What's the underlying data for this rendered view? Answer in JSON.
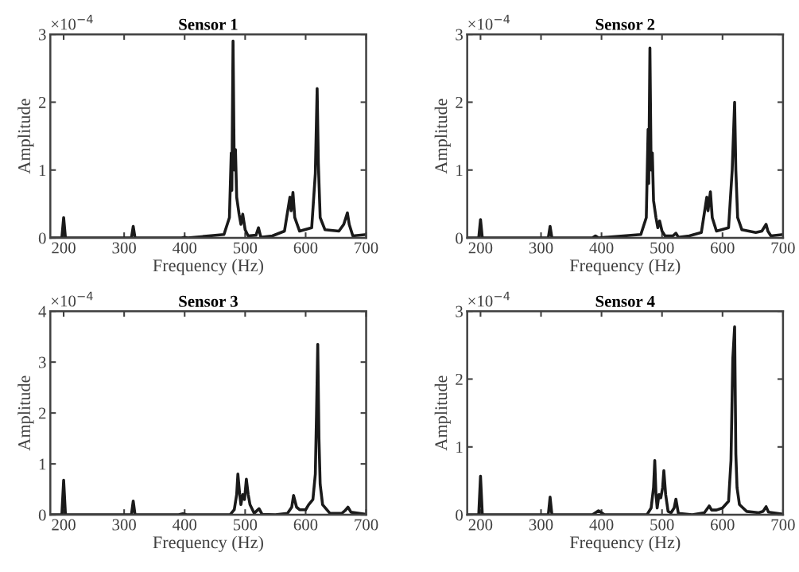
{
  "chart_data": [
    {
      "type": "line",
      "title": "Sensor 1",
      "xlabel": "Frequency (Hz)",
      "ylabel": "Amplitude",
      "annotations": [
        "×10$^{−4}$"
      ],
      "x": [
        178,
        197,
        200,
        203,
        312,
        315,
        318,
        395,
        400,
        405,
        465,
        474,
        477,
        478,
        480,
        482,
        484,
        486,
        490,
        493,
        496,
        500,
        505,
        518,
        522,
        526,
        545,
        565,
        574,
        576,
        579,
        582,
        590,
        610,
        616,
        619,
        621,
        624,
        632,
        655,
        663,
        669,
        672,
        678,
        700
      ],
      "series": [
        {
          "color": "#1a1a1a",
          "values": [
            0,
            0,
            0.3,
            0,
            0,
            0.17,
            0,
            0,
            0.01,
            0,
            0.05,
            0.3,
            1.25,
            0.7,
            2.9,
            1.0,
            1.3,
            0.6,
            0.35,
            0.2,
            0.35,
            0.12,
            0.03,
            0.04,
            0.15,
            0.01,
            0.03,
            0.1,
            0.6,
            0.4,
            0.67,
            0.3,
            0.1,
            0.15,
            0.95,
            2.2,
            1.1,
            0.3,
            0.12,
            0.1,
            0.2,
            0.37,
            0.2,
            0.03,
            0.05
          ]
        }
      ],
      "xlim": [
        178,
        700
      ],
      "xticks": [
        200,
        300,
        400,
        500,
        600,
        700
      ],
      "ylim": [
        0,
        3
      ],
      "yticks": [
        0,
        1,
        2,
        3
      ],
      "grid": false,
      "marker": "none",
      "line_style": "solid"
    },
    {
      "type": "line",
      "title": "Sensor 2",
      "xlabel": "Frequency (Hz)",
      "ylabel": "Amplitude",
      "annotations": [
        "×10$^{−4}$"
      ],
      "x": [
        178,
        197,
        200,
        203,
        312,
        315,
        318,
        385,
        390,
        395,
        465,
        474,
        477,
        478,
        480,
        482,
        484,
        486,
        490,
        493,
        496,
        500,
        505,
        518,
        523,
        527,
        545,
        565,
        574,
        576,
        580,
        583,
        590,
        610,
        616,
        620,
        622,
        625,
        632,
        655,
        665,
        672,
        675,
        680,
        700
      ],
      "series": [
        {
          "color": "#1a1a1a",
          "values": [
            0,
            0,
            0.27,
            0,
            0,
            0.17,
            0,
            0,
            0.03,
            0,
            0.05,
            0.3,
            1.6,
            0.8,
            2.8,
            1.0,
            1.25,
            0.55,
            0.3,
            0.15,
            0.25,
            0.1,
            0.03,
            0.03,
            0.07,
            0.01,
            0.03,
            0.08,
            0.6,
            0.4,
            0.68,
            0.3,
            0.1,
            0.15,
            1.0,
            2.0,
            1.0,
            0.3,
            0.12,
            0.08,
            0.1,
            0.2,
            0.1,
            0.03,
            0.05
          ]
        }
      ],
      "xlim": [
        178,
        700
      ],
      "xticks": [
        200,
        300,
        400,
        500,
        600,
        700
      ],
      "ylim": [
        0,
        3
      ],
      "yticks": [
        0,
        1,
        2,
        3
      ],
      "grid": false,
      "marker": "none",
      "line_style": "solid"
    },
    {
      "type": "line",
      "title": "Sensor 3",
      "xlabel": "Frequency (Hz)",
      "ylabel": "Amplitude",
      "annotations": [
        "×10$^{−4}$"
      ],
      "x": [
        178,
        197,
        200,
        203,
        312,
        315,
        318,
        390,
        397,
        403,
        475,
        482,
        486,
        488,
        491,
        493,
        496,
        499,
        502,
        505,
        508,
        515,
        523,
        528,
        550,
        570,
        577,
        580,
        585,
        590,
        600,
        605,
        612,
        616,
        618,
        620,
        622,
        624,
        628,
        640,
        660,
        665,
        670,
        675,
        700
      ],
      "series": [
        {
          "color": "#1a1a1a",
          "values": [
            0,
            0,
            0.68,
            0,
            0,
            0.27,
            0,
            0,
            0.02,
            0,
            0,
            0.1,
            0.4,
            0.8,
            0.4,
            0.2,
            0.4,
            0.3,
            0.7,
            0.4,
            0.2,
            0.03,
            0.12,
            0.01,
            0,
            0.03,
            0.15,
            0.38,
            0.15,
            0.1,
            0.1,
            0.2,
            0.3,
            0.8,
            2.0,
            3.35,
            1.5,
            0.6,
            0.2,
            0.03,
            0.03,
            0.08,
            0.15,
            0.05,
            0.01
          ]
        }
      ],
      "xlim": [
        178,
        700
      ],
      "xticks": [
        200,
        300,
        400,
        500,
        600,
        700
      ],
      "ylim": [
        0,
        4
      ],
      "yticks": [
        0,
        1,
        2,
        3,
        4
      ],
      "grid": false,
      "marker": "none",
      "line_style": "solid"
    },
    {
      "type": "line",
      "title": "Sensor 4",
      "xlabel": "Frequency (Hz)",
      "ylabel": "Amplitude",
      "annotations": [
        "×10$^{−4}$"
      ],
      "x": [
        178,
        197,
        200,
        203,
        312,
        315,
        318,
        385,
        395,
        405,
        475,
        482,
        486,
        488,
        490,
        492,
        495,
        498,
        501,
        503,
        506,
        510,
        515,
        520,
        523,
        527,
        550,
        570,
        578,
        582,
        590,
        600,
        610,
        614,
        617,
        620,
        622,
        624,
        628,
        640,
        660,
        667,
        672,
        676,
        700
      ],
      "series": [
        {
          "color": "#1a1a1a",
          "values": [
            0,
            0,
            0.57,
            0,
            0,
            0.26,
            0,
            0,
            0.06,
            0,
            0,
            0.1,
            0.4,
            0.8,
            0.3,
            0.1,
            0.3,
            0.25,
            0.4,
            0.65,
            0.3,
            0.05,
            0.03,
            0.1,
            0.23,
            0.02,
            0,
            0.03,
            0.13,
            0.07,
            0.07,
            0.1,
            0.2,
            0.8,
            2.3,
            2.77,
            0.9,
            0.4,
            0.15,
            0.05,
            0.03,
            0.05,
            0.12,
            0.04,
            0.01
          ]
        }
      ],
      "xlim": [
        178,
        700
      ],
      "xticks": [
        200,
        300,
        400,
        500,
        600,
        700
      ],
      "ylim": [
        0,
        3
      ],
      "yticks": [
        0,
        1,
        2,
        3
      ],
      "grid": false,
      "marker": "none",
      "line_style": "solid"
    }
  ]
}
